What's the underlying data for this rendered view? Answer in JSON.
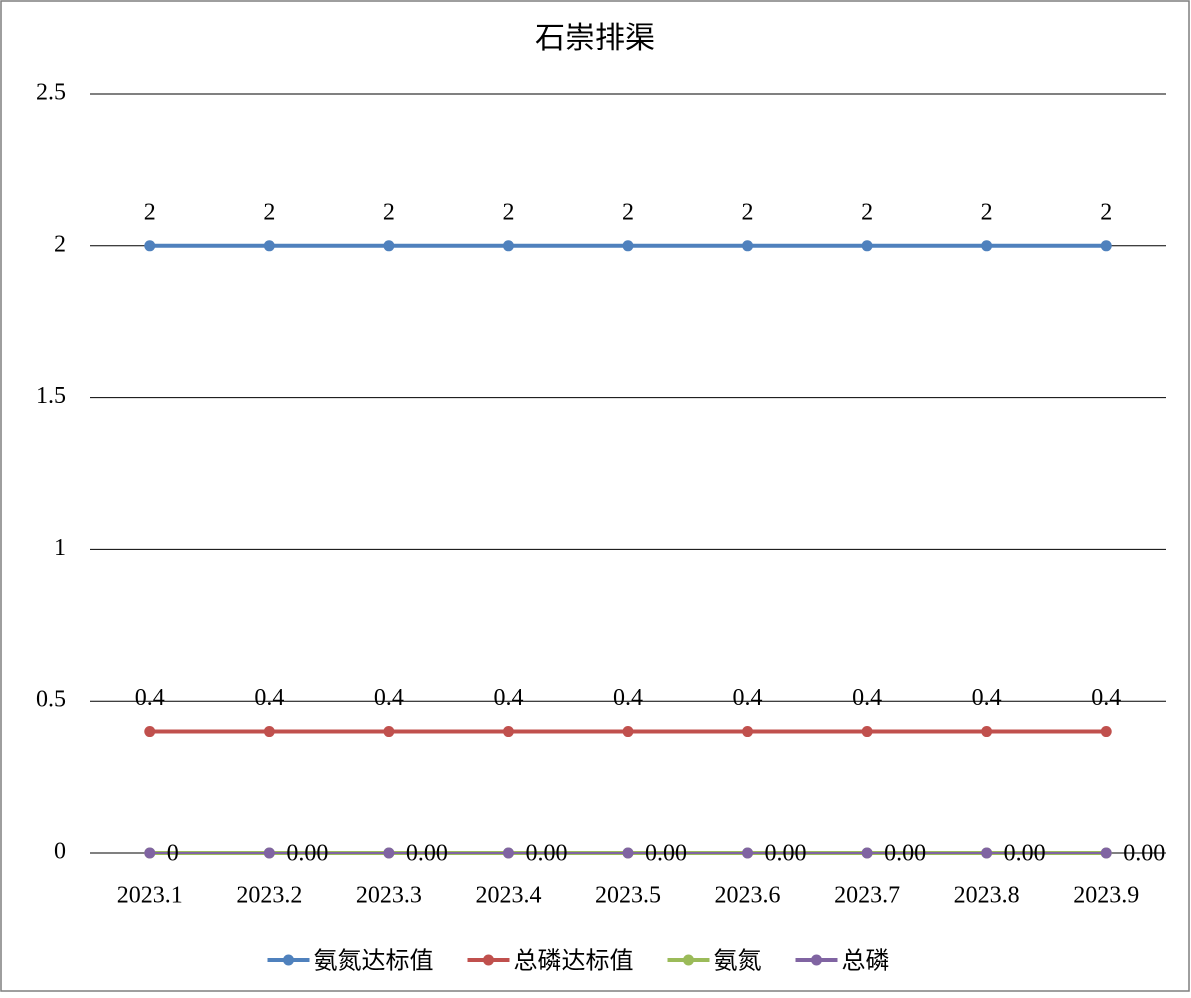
{
  "chart_data": {
    "type": "line",
    "title": "石崇排渠",
    "categories": [
      "2023.1",
      "2023.2",
      "2023.3",
      "2023.4",
      "2023.5",
      "2023.6",
      "2023.7",
      "2023.8",
      "2023.9"
    ],
    "series": [
      {
        "name": "氨氮达标值",
        "color": "#4f81bd",
        "values": [
          2,
          2,
          2,
          2,
          2,
          2,
          2,
          2,
          2
        ]
      },
      {
        "name": "总磷达标值",
        "color": "#c0504d",
        "values": [
          0.4,
          0.4,
          0.4,
          0.4,
          0.4,
          0.4,
          0.4,
          0.4,
          0.4
        ]
      },
      {
        "name": "氨氮",
        "color": "#9bbb59",
        "values": [
          0,
          0,
          0,
          0,
          0,
          0,
          0,
          0,
          0
        ]
      },
      {
        "name": "总磷",
        "color": "#8064a2",
        "values": [
          0,
          0,
          0,
          0,
          0,
          0,
          0,
          0,
          0
        ],
        "value_labels": [
          "0",
          "0.00",
          "0.00",
          "0.00",
          "0.00",
          "0.00",
          "0.00",
          "0.00",
          "0.00"
        ]
      }
    ],
    "ylim": [
      0,
      2.5
    ],
    "yticks": [
      0,
      0.5,
      1,
      1.5,
      2,
      2.5
    ],
    "grid": true,
    "legend": "bottom"
  }
}
